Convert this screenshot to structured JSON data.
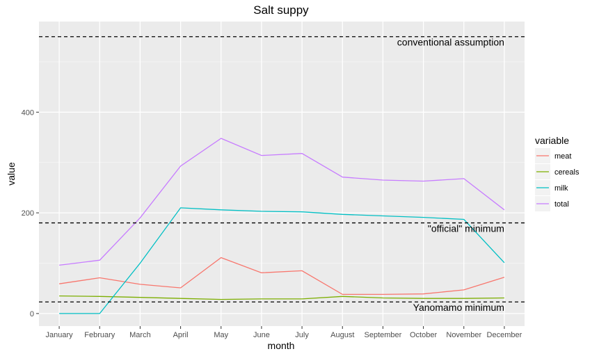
{
  "chart_data": {
    "type": "line",
    "title": "Salt suppy",
    "xlabel": "month",
    "ylabel": "value",
    "categories": [
      "January",
      "February",
      "March",
      "April",
      "May",
      "June",
      "July",
      "August",
      "September",
      "October",
      "November",
      "December"
    ],
    "y_ticks": [
      0,
      200,
      400
    ],
    "ylim": [
      -25,
      580
    ],
    "grid": true,
    "legend_title": "variable",
    "legend_position": "right",
    "series": [
      {
        "name": "meat",
        "color": "#F8766D",
        "values": [
          59,
          71,
          58,
          51,
          111,
          81,
          85,
          38,
          38,
          39,
          47,
          72
        ]
      },
      {
        "name": "cereals",
        "color": "#7CAE00",
        "values": [
          35,
          34,
          32,
          30,
          28,
          29,
          29,
          34,
          31,
          30,
          30,
          31
        ]
      },
      {
        "name": "milk",
        "color": "#00BFC4",
        "values": [
          0,
          0,
          100,
          210,
          206,
          203,
          202,
          197,
          194,
          191,
          187,
          101
        ]
      },
      {
        "name": "total",
        "color": "#C77CFF",
        "values": [
          96,
          106,
          190,
          293,
          348,
          314,
          318,
          271,
          265,
          263,
          268,
          206
        ]
      }
    ],
    "reference_lines": [
      {
        "value": 550,
        "label": "conventional assumption"
      },
      {
        "value": 180,
        "label": "\"official\" minimum"
      },
      {
        "value": 23,
        "label": "Yanomamo minimum"
      }
    ]
  }
}
